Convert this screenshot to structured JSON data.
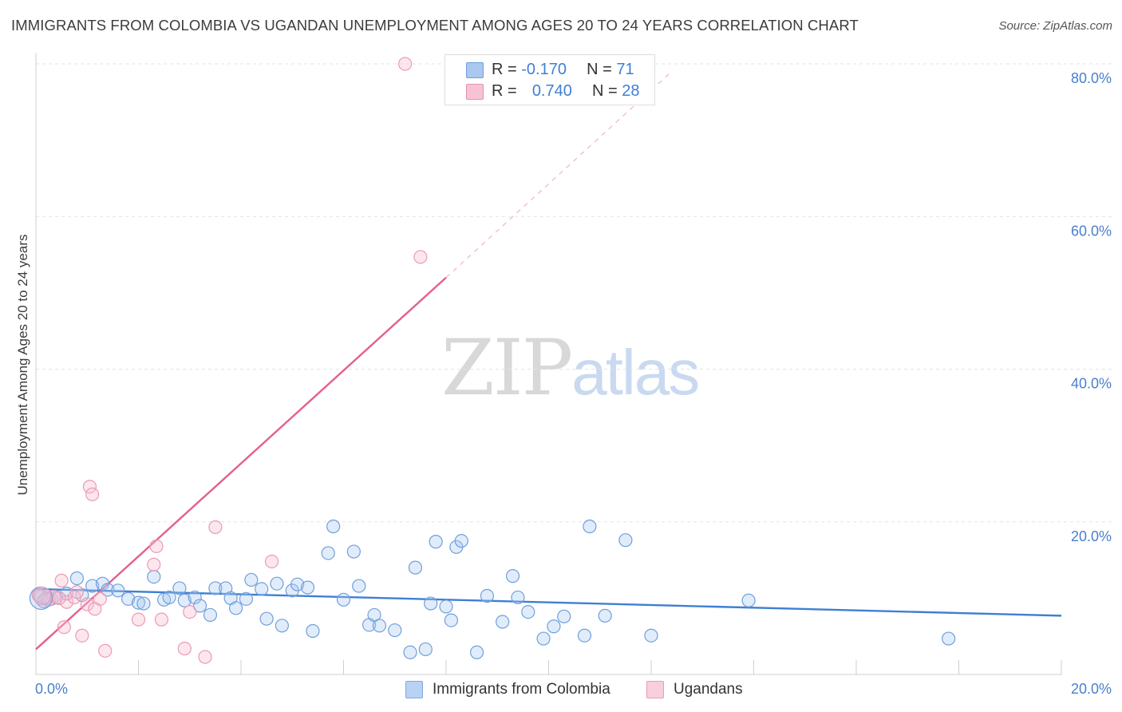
{
  "header": {
    "title": "IMMIGRANTS FROM COLOMBIA VS UGANDAN UNEMPLOYMENT AMONG AGES 20 TO 24 YEARS CORRELATION CHART",
    "source": "Source: ZipAtlas.com"
  },
  "watermark": {
    "zip": "ZIP",
    "atlas": "atlas"
  },
  "legend": {
    "r_label": "R =",
    "n_label": "N =",
    "rows": [
      {
        "r": "-0.170",
        "n": "71",
        "color": "#aac8f0",
        "border": "#6f9fdc"
      },
      {
        "r": "0.740",
        "n": "28",
        "color": "#f7c3d3",
        "border": "#e890ad"
      }
    ]
  },
  "bottom_legend": {
    "items": [
      {
        "label": "Immigrants from Colombia",
        "color": "#b9d2f4",
        "border": "#7ea8e0"
      },
      {
        "label": "Ugandans",
        "color": "#f9cfdc",
        "border": "#eb9ab5"
      }
    ]
  },
  "chart_data": {
    "type": "scatter",
    "title": "IMMIGRANTS FROM COLOMBIA VS UGANDAN UNEMPLOYMENT AMONG AGES 20 TO 24 YEARS CORRELATION CHART",
    "xlabel": "",
    "ylabel": "Unemployment Among Ages 20 to 24 years",
    "xlim": [
      0,
      20
    ],
    "ylim": [
      0,
      85
    ],
    "x_tick_labels": [
      "0.0%",
      "20.0%"
    ],
    "y_ticks": [
      20,
      40,
      60,
      80
    ],
    "y_tick_labels": [
      "20.0%",
      "40.0%",
      "60.0%",
      "80.0%"
    ],
    "grid": true,
    "legend_position": "top-center",
    "colors": {
      "colombia": "#3f7fd3",
      "ugandans": "#e55f8e"
    },
    "series": [
      {
        "name": "Immigrants from Colombia",
        "r": -0.17,
        "n": 71,
        "trend": {
          "x": [
            0,
            20
          ],
          "y": [
            11.2,
            7.7
          ]
        },
        "points": [
          [
            0.1,
            10.2
          ],
          [
            0.2,
            10.0
          ],
          [
            0.3,
            9.9
          ],
          [
            0.4,
            10.1
          ],
          [
            0.6,
            10.6
          ],
          [
            0.8,
            12.6
          ],
          [
            0.9,
            10.4
          ],
          [
            1.1,
            11.6
          ],
          [
            1.3,
            11.9
          ],
          [
            1.4,
            11.1
          ],
          [
            1.6,
            11.0
          ],
          [
            1.8,
            9.9
          ],
          [
            2.0,
            9.4
          ],
          [
            2.1,
            9.3
          ],
          [
            2.3,
            12.8
          ],
          [
            2.5,
            9.8
          ],
          [
            2.6,
            10.1
          ],
          [
            2.8,
            11.3
          ],
          [
            2.9,
            9.7
          ],
          [
            3.1,
            10.1
          ],
          [
            3.2,
            9.0
          ],
          [
            3.4,
            7.8
          ],
          [
            3.5,
            11.3
          ],
          [
            3.7,
            11.3
          ],
          [
            3.8,
            10.0
          ],
          [
            3.9,
            8.7
          ],
          [
            4.1,
            9.9
          ],
          [
            4.2,
            12.4
          ],
          [
            4.4,
            11.2
          ],
          [
            4.5,
            7.3
          ],
          [
            4.7,
            11.9
          ],
          [
            4.8,
            6.4
          ],
          [
            5.0,
            11.0
          ],
          [
            5.1,
            11.8
          ],
          [
            5.3,
            11.4
          ],
          [
            5.4,
            5.7
          ],
          [
            5.7,
            15.9
          ],
          [
            5.8,
            19.4
          ],
          [
            6.0,
            9.8
          ],
          [
            6.2,
            16.1
          ],
          [
            6.3,
            11.6
          ],
          [
            6.5,
            6.5
          ],
          [
            6.6,
            7.8
          ],
          [
            6.7,
            6.4
          ],
          [
            7.0,
            5.8
          ],
          [
            7.3,
            2.9
          ],
          [
            7.4,
            14.0
          ],
          [
            7.6,
            3.3
          ],
          [
            7.7,
            9.3
          ],
          [
            7.8,
            17.4
          ],
          [
            8.0,
            8.9
          ],
          [
            8.1,
            7.1
          ],
          [
            8.2,
            16.7
          ],
          [
            8.3,
            17.5
          ],
          [
            8.6,
            2.9
          ],
          [
            8.8,
            10.3
          ],
          [
            9.1,
            6.9
          ],
          [
            9.3,
            12.9
          ],
          [
            9.4,
            10.1
          ],
          [
            9.6,
            8.2
          ],
          [
            9.9,
            4.7
          ],
          [
            10.1,
            6.3
          ],
          [
            10.3,
            7.6
          ],
          [
            10.7,
            5.1
          ],
          [
            10.8,
            19.4
          ],
          [
            11.1,
            7.7
          ],
          [
            11.5,
            17.6
          ],
          [
            12.0,
            5.1
          ],
          [
            13.9,
            9.7
          ],
          [
            17.8,
            4.7
          ],
          [
            0.15,
            9.6
          ]
        ]
      },
      {
        "name": "Ugandans",
        "r": 0.74,
        "n": 28,
        "trend": {
          "x": [
            0,
            8.0
          ],
          "y": [
            3.3,
            52.0
          ]
        },
        "trend_extension": {
          "x": [
            8.0,
            12.4
          ],
          "y": [
            52.0,
            79.0
          ]
        },
        "points": [
          [
            0.05,
            10.4
          ],
          [
            0.2,
            9.9
          ],
          [
            0.35,
            10.2
          ],
          [
            0.5,
            12.3
          ],
          [
            0.55,
            6.2
          ],
          [
            0.6,
            9.5
          ],
          [
            0.75,
            10.1
          ],
          [
            0.8,
            10.8
          ],
          [
            0.9,
            5.1
          ],
          [
            1.0,
            9.2
          ],
          [
            1.05,
            24.6
          ],
          [
            1.1,
            23.6
          ],
          [
            1.15,
            8.6
          ],
          [
            1.25,
            9.9
          ],
          [
            1.35,
            3.1
          ],
          [
            2.0,
            7.2
          ],
          [
            2.3,
            14.4
          ],
          [
            2.35,
            16.8
          ],
          [
            2.45,
            7.2
          ],
          [
            2.9,
            3.4
          ],
          [
            3.0,
            8.2
          ],
          [
            3.3,
            2.3
          ],
          [
            3.5,
            19.3
          ],
          [
            4.6,
            14.8
          ],
          [
            7.2,
            80.0
          ],
          [
            7.5,
            54.7
          ],
          [
            0.25,
            9.8
          ],
          [
            0.45,
            10.0
          ]
        ]
      }
    ]
  }
}
